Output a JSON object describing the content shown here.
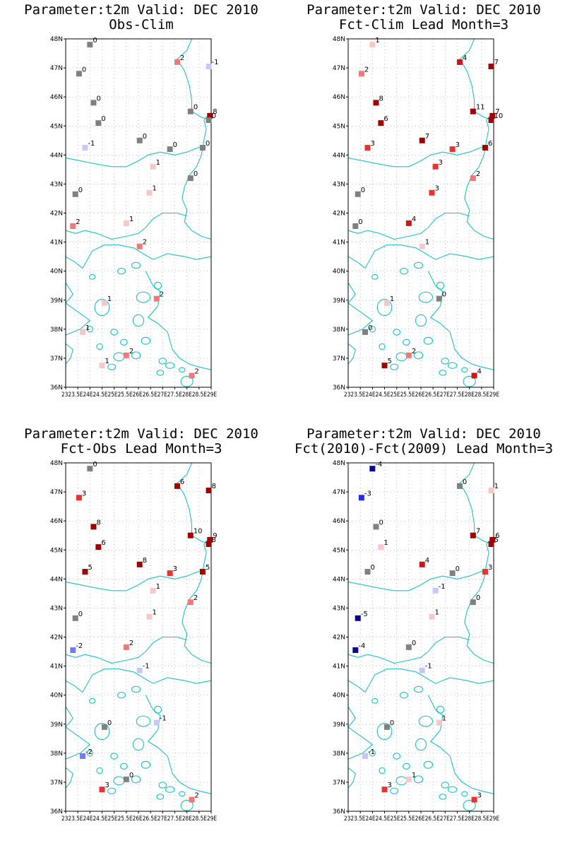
{
  "axes": {
    "lat_labels": [
      "48N",
      "47N",
      "46N",
      "45N",
      "44N",
      "43N",
      "42N",
      "41N",
      "40N",
      "39N",
      "38N",
      "37N",
      "36N"
    ],
    "lon_labels": [
      "23E",
      "23.5E",
      "24E",
      "24.5E",
      "25E",
      "25.5E",
      "26E",
      "26.5E",
      "27E",
      "27.5E",
      "28E",
      "28.5E",
      "29E"
    ],
    "lon_axis_text": "2323.5E24E24.5E25E25.5E26E26.5E27E27.5E28E28.5E29E",
    "lat_range": [
      36,
      48
    ],
    "lon_range": [
      23,
      29
    ],
    "grid": true,
    "coastline_color": "#20c0c0"
  },
  "color_scale": {
    "-5": "#0000a0",
    "-4": "#0a0a96",
    "-3": "#2828f0",
    "-2": "#7878f8",
    "-1": "#c8c8f8",
    "0": "#808080",
    "1": "#f8c8c8",
    "2": "#f07878",
    "3": "#f03030",
    "4": "#c81818",
    "5": "#a00000",
    "6": "#a00000",
    "7": "#a00000",
    "8": "#a00000",
    "9": "#a00000",
    "10": "#a00000",
    "11": "#a00000"
  },
  "stations": [
    {
      "lon": 24.0,
      "lat": 47.8
    },
    {
      "lon": 27.6,
      "lat": 47.2
    },
    {
      "lon": 28.9,
      "lat": 47.05
    },
    {
      "lon": 23.55,
      "lat": 46.8
    },
    {
      "lon": 24.15,
      "lat": 45.8
    },
    {
      "lon": 28.15,
      "lat": 45.5
    },
    {
      "lon": 28.95,
      "lat": 45.35
    },
    {
      "lon": 28.9,
      "lat": 45.2
    },
    {
      "lon": 24.35,
      "lat": 45.1
    },
    {
      "lon": 26.05,
      "lat": 44.5
    },
    {
      "lon": 27.3,
      "lat": 44.2
    },
    {
      "lon": 28.65,
      "lat": 44.25
    },
    {
      "lon": 23.8,
      "lat": 44.25
    },
    {
      "lon": 26.6,
      "lat": 43.6
    },
    {
      "lon": 28.15,
      "lat": 43.2
    },
    {
      "lon": 26.45,
      "lat": 42.7
    },
    {
      "lon": 23.4,
      "lat": 42.65
    },
    {
      "lon": 25.5,
      "lat": 41.65
    },
    {
      "lon": 23.3,
      "lat": 41.55
    },
    {
      "lon": 26.05,
      "lat": 40.85
    },
    {
      "lon": 26.75,
      "lat": 39.05
    },
    {
      "lon": 24.6,
      "lat": 38.9
    },
    {
      "lon": 23.7,
      "lat": 37.9
    },
    {
      "lon": 25.5,
      "lat": 37.1
    },
    {
      "lon": 24.5,
      "lat": 36.75
    },
    {
      "lon": 28.2,
      "lat": 36.4
    }
  ],
  "panels": [
    {
      "title_line1": "Parameter:t2m Valid: DEC 2010",
      "title_line2": "Obs-Clim",
      "values": [
        0,
        2,
        -1,
        0,
        0,
        0,
        8,
        0,
        0,
        0,
        0,
        0,
        -1,
        1,
        0,
        1,
        0,
        1,
        2,
        2,
        2,
        1,
        1,
        2,
        1,
        2
      ]
    },
    {
      "title_line1": "Parameter:t2m Valid: DEC 2010",
      "title_line2": "Fct-Clim Lead Month=3",
      "values": [
        1,
        4,
        7,
        2,
        8,
        11,
        7,
        10,
        6,
        7,
        3,
        6,
        3,
        3,
        2,
        3,
        0,
        4,
        0,
        1,
        0,
        1,
        0,
        2,
        5,
        4
      ]
    },
    {
      "title_line1": "Parameter:t2m Valid: DEC 2010",
      "title_line2": "Fct-Obs Lead Month=3",
      "values": [
        0,
        6,
        8,
        3,
        8,
        10,
        9,
        8,
        6,
        8,
        3,
        5,
        5,
        1,
        2,
        1,
        0,
        2,
        -2,
        -1,
        -1,
        0,
        -2,
        0,
        3,
        2
      ]
    },
    {
      "title_line1": "Parameter:t2m Valid: DEC 2010",
      "title_line2": "Fct(2010)-Fct(2009) Lead Month=3",
      "values": [
        -4,
        0,
        1,
        -3,
        0,
        7,
        6,
        5,
        1,
        4,
        0,
        3,
        0,
        -1,
        0,
        1,
        -5,
        0,
        -4,
        -1,
        1,
        0,
        -1,
        1,
        3,
        3
      ]
    }
  ]
}
